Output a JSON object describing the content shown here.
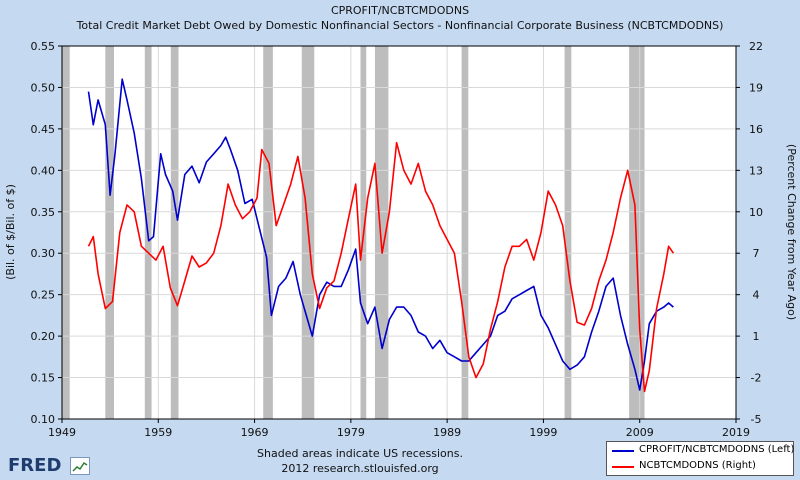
{
  "chart_data": {
    "type": "line",
    "title": "CPROFIT/NCBTCMDODNS",
    "subtitle": "Total Credit Market Debt Owed by Domestic Nonfinancial Sectors - Nonfinancial Corporate Business (NCBTCMDODNS)",
    "ylabel_left": "(Bil. of $/Bil. of $)",
    "ylabel_right": "(Percent Change from Year Ago)",
    "xlim": [
      1949,
      2019
    ],
    "ylim_left": [
      0.1,
      0.55
    ],
    "ylim_right": [
      -5,
      22
    ],
    "x_ticks": [
      1949,
      1959,
      1969,
      1979,
      1989,
      1999,
      2009,
      2019
    ],
    "y_ticks_left": [
      "0.10",
      "0.15",
      "0.20",
      "0.25",
      "0.30",
      "0.35",
      "0.40",
      "0.45",
      "0.50",
      "0.55"
    ],
    "y_ticks_right": [
      "-5",
      "-2",
      "1",
      "4",
      "7",
      "10",
      "13",
      "16",
      "19",
      "22"
    ],
    "grid": true,
    "legend_position": "bottom-right",
    "recessions": [
      [
        1949.0,
        1949.8
      ],
      [
        1953.5,
        1954.4
      ],
      [
        1957.6,
        1958.3
      ],
      [
        1960.3,
        1961.1
      ],
      [
        1969.9,
        1970.9
      ],
      [
        1973.9,
        1975.2
      ],
      [
        1980.0,
        1980.6
      ],
      [
        1981.5,
        1982.9
      ],
      [
        1990.5,
        1991.2
      ],
      [
        2001.2,
        2001.9
      ],
      [
        2007.9,
        2009.5
      ]
    ],
    "series": [
      {
        "name": "CPROFIT/NCBTCMDODNS (Left)",
        "axis": "left",
        "color": "#0000cc",
        "x": [
          1951.75,
          1952.25,
          1952.75,
          1953.5,
          1954.0,
          1954.5,
          1955.25,
          1955.75,
          1956.5,
          1957.25,
          1958.0,
          1958.5,
          1959.25,
          1959.75,
          1960.5,
          1961.0,
          1961.75,
          1962.5,
          1963.25,
          1964.0,
          1964.75,
          1965.5,
          1966.0,
          1966.5,
          1967.25,
          1968.0,
          1968.75,
          1969.5,
          1970.25,
          1970.75,
          1971.5,
          1972.25,
          1973.0,
          1973.75,
          1974.5,
          1975.0,
          1975.75,
          1976.5,
          1977.25,
          1978.0,
          1978.75,
          1979.5,
          1980.0,
          1980.75,
          1981.5,
          1982.25,
          1983.0,
          1983.75,
          1984.5,
          1985.25,
          1986.0,
          1986.75,
          1987.5,
          1988.25,
          1989.0,
          1989.75,
          1990.5,
          1991.25,
          1992.0,
          1992.75,
          1993.5,
          1994.25,
          1995.0,
          1995.75,
          1996.5,
          1997.25,
          1998.0,
          1998.75,
          1999.5,
          2000.25,
          2001.0,
          2001.75,
          2002.5,
          2003.25,
          2004.0,
          2004.75,
          2005.5,
          2006.25,
          2007.0,
          2007.75,
          2008.5,
          2009.0,
          2009.5,
          2010.0,
          2010.75,
          2011.5,
          2012.0,
          2012.5
        ],
        "y": [
          0.495,
          0.455,
          0.485,
          0.455,
          0.37,
          0.42,
          0.51,
          0.485,
          0.445,
          0.39,
          0.315,
          0.32,
          0.42,
          0.395,
          0.375,
          0.34,
          0.395,
          0.405,
          0.385,
          0.41,
          0.42,
          0.43,
          0.44,
          0.425,
          0.4,
          0.36,
          0.365,
          0.33,
          0.295,
          0.225,
          0.26,
          0.27,
          0.29,
          0.25,
          0.22,
          0.2,
          0.25,
          0.265,
          0.26,
          0.26,
          0.28,
          0.305,
          0.24,
          0.215,
          0.235,
          0.185,
          0.22,
          0.235,
          0.235,
          0.225,
          0.205,
          0.2,
          0.185,
          0.195,
          0.18,
          0.175,
          0.17,
          0.17,
          0.18,
          0.19,
          0.2,
          0.225,
          0.23,
          0.245,
          0.25,
          0.255,
          0.26,
          0.225,
          0.21,
          0.19,
          0.17,
          0.16,
          0.165,
          0.175,
          0.205,
          0.23,
          0.26,
          0.27,
          0.225,
          0.19,
          0.16,
          0.135,
          0.17,
          0.215,
          0.23,
          0.235,
          0.24,
          0.235
        ]
      },
      {
        "name": "NCBTCMDODNS (Right)",
        "axis": "right",
        "color": "#ff0000",
        "x": [
          1951.75,
          1952.25,
          1952.75,
          1953.5,
          1954.25,
          1955.0,
          1955.75,
          1956.5,
          1957.25,
          1958.0,
          1958.75,
          1959.5,
          1960.25,
          1961.0,
          1961.75,
          1962.5,
          1963.25,
          1964.0,
          1964.75,
          1965.5,
          1966.25,
          1967.0,
          1967.75,
          1968.5,
          1969.25,
          1969.75,
          1970.5,
          1971.25,
          1972.0,
          1972.75,
          1973.5,
          1974.25,
          1975.0,
          1975.75,
          1976.5,
          1977.25,
          1978.0,
          1978.75,
          1979.5,
          1980.0,
          1980.75,
          1981.5,
          1982.25,
          1983.0,
          1983.75,
          1984.5,
          1985.25,
          1986.0,
          1986.75,
          1987.5,
          1988.25,
          1989.0,
          1989.75,
          1990.5,
          1991.25,
          1992.0,
          1992.75,
          1993.5,
          1994.25,
          1995.0,
          1995.75,
          1996.5,
          1997.25,
          1998.0,
          1998.75,
          1999.5,
          2000.25,
          2001.0,
          2001.75,
          2002.5,
          2003.25,
          2004.0,
          2004.75,
          2005.5,
          2006.25,
          2007.0,
          2007.75,
          2008.5,
          2009.0,
          2009.5,
          2010.0,
          2010.75,
          2011.5,
          2012.0,
          2012.5
        ],
        "y": [
          7.5,
          8.2,
          5.5,
          3.0,
          3.5,
          8.5,
          10.5,
          10.0,
          7.5,
          7.0,
          6.5,
          7.5,
          4.5,
          3.2,
          5.0,
          6.8,
          6.0,
          6.3,
          7.0,
          9.0,
          12.0,
          10.5,
          9.5,
          10.0,
          11.0,
          14.5,
          13.5,
          9.0,
          10.5,
          12.0,
          14.0,
          11.0,
          5.5,
          3.0,
          4.5,
          5.0,
          7.0,
          9.5,
          12.0,
          6.5,
          11.0,
          13.5,
          7.0,
          10.0,
          15.0,
          13.0,
          12.0,
          13.5,
          11.5,
          10.5,
          9.0,
          8.0,
          7.0,
          3.5,
          -0.5,
          -2.0,
          -1.0,
          1.5,
          3.5,
          6.0,
          7.5,
          7.5,
          8.0,
          6.5,
          8.5,
          11.5,
          10.5,
          9.0,
          5.0,
          2.0,
          1.8,
          3.0,
          5.0,
          6.5,
          8.5,
          11.0,
          13.0,
          10.5,
          1.5,
          -3.0,
          -1.5,
          3.0,
          5.5,
          7.5,
          7.0
        ]
      }
    ]
  },
  "legend": {
    "items": [
      {
        "label": "CPROFIT/NCBTCMDODNS (Left)",
        "color": "#0000cc"
      },
      {
        "label": "NCBTCMDODNS (Right)",
        "color": "#ff0000"
      }
    ]
  },
  "footer": {
    "line1": "Shaded areas indicate US recessions.",
    "line2": "2012 research.stlouisfed.org"
  },
  "logo": {
    "text": "FRED"
  }
}
